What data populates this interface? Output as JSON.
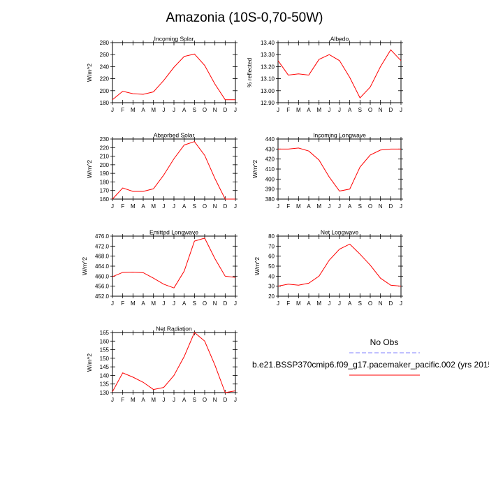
{
  "figure": {
    "title": "Amazonia (10S-0,70-50W)"
  },
  "legend": {
    "no_obs_label": "No Obs",
    "no_obs_color": "#8080ff",
    "case_label": "b.e21.BSSP370cmip6.f09_g17.pacemaker_pacific.002 (yrs 2015",
    "case_color": "#ff0000"
  },
  "chart_data": [
    {
      "type": "line",
      "title": "Incoming Solar",
      "ylabel": "W/m^2",
      "categories": [
        "J",
        "F",
        "M",
        "A",
        "M",
        "J",
        "J",
        "A",
        "S",
        "O",
        "N",
        "D",
        "J"
      ],
      "ylim": [
        180,
        280
      ],
      "yticks": [
        180,
        200,
        220,
        240,
        260,
        280
      ],
      "yticklabels": [
        "180",
        "200",
        "220",
        "240",
        "260",
        "280"
      ],
      "series": [
        {
          "values": [
            185,
            199,
            195,
            194,
            198,
            217,
            239,
            257,
            261,
            242,
            211,
            185,
            185
          ],
          "color": "#ff0000"
        }
      ]
    },
    {
      "type": "line",
      "title": "Albedo",
      "ylabel": "% reflected",
      "categories": [
        "J",
        "F",
        "M",
        "A",
        "M",
        "J",
        "J",
        "A",
        "S",
        "O",
        "N",
        "D",
        "J"
      ],
      "ylim": [
        12.9,
        13.4
      ],
      "yticks": [
        12.9,
        13.0,
        13.1,
        13.2,
        13.3,
        13.4
      ],
      "yticklabels": [
        "12.90",
        "13.00",
        "13.10",
        "13.20",
        "13.30",
        "13.40"
      ],
      "series": [
        {
          "values": [
            13.25,
            13.13,
            13.14,
            13.13,
            13.26,
            13.3,
            13.25,
            13.11,
            12.94,
            13.03,
            13.2,
            13.34,
            13.25
          ],
          "color": "#ff0000"
        }
      ]
    },
    {
      "type": "line",
      "title": "Absorbed Solar",
      "ylabel": "W/m^2",
      "categories": [
        "J",
        "F",
        "M",
        "A",
        "M",
        "J",
        "J",
        "A",
        "S",
        "O",
        "N",
        "D",
        "J"
      ],
      "ylim": [
        160,
        230
      ],
      "yticks": [
        160,
        170,
        180,
        190,
        200,
        210,
        220,
        230
      ],
      "yticklabels": [
        "160",
        "170",
        "180",
        "190",
        "200",
        "210",
        "220",
        "230"
      ],
      "series": [
        {
          "values": [
            160,
            173,
            169,
            169,
            172,
            188,
            207,
            223,
            227,
            211,
            184,
            160,
            160
          ],
          "color": "#ff0000"
        }
      ]
    },
    {
      "type": "line",
      "title": "Incoming Longwave",
      "ylabel": "W/m^2",
      "categories": [
        "J",
        "F",
        "M",
        "A",
        "M",
        "J",
        "J",
        "A",
        "S",
        "O",
        "N",
        "D",
        "J"
      ],
      "ylim": [
        380,
        440
      ],
      "yticks": [
        380,
        390,
        400,
        410,
        420,
        430,
        440
      ],
      "yticklabels": [
        "380",
        "390",
        "400",
        "410",
        "420",
        "430",
        "440"
      ],
      "series": [
        {
          "values": [
            430,
            430,
            431,
            428,
            419,
            402,
            388,
            390,
            412,
            424,
            429,
            430,
            430
          ],
          "color": "#ff0000"
        }
      ]
    },
    {
      "type": "line",
      "title": "Emitted Longwave",
      "ylabel": "W/m^2",
      "categories": [
        "J",
        "F",
        "M",
        "A",
        "M",
        "J",
        "J",
        "A",
        "S",
        "O",
        "N",
        "D",
        "J"
      ],
      "ylim": [
        452,
        476
      ],
      "yticks": [
        452,
        456,
        460,
        464,
        468,
        472,
        476
      ],
      "yticklabels": [
        "452.0",
        "456.0",
        "460.0",
        "464.0",
        "468.0",
        "472.0",
        "476.0"
      ],
      "series": [
        {
          "values": [
            459.8,
            461.5,
            461.6,
            461.4,
            459.2,
            456.8,
            455.3,
            462.0,
            474.0,
            475.2,
            467.0,
            460.0,
            459.5
          ],
          "color": "#ff0000"
        }
      ]
    },
    {
      "type": "line",
      "title": "Net Longwave",
      "ylabel": "W/m^2",
      "categories": [
        "J",
        "F",
        "M",
        "A",
        "M",
        "J",
        "J",
        "A",
        "S",
        "O",
        "N",
        "D",
        "J"
      ],
      "ylim": [
        20,
        80
      ],
      "yticks": [
        20,
        30,
        40,
        50,
        60,
        70,
        80
      ],
      "yticklabels": [
        "20",
        "30",
        "40",
        "50",
        "60",
        "70",
        "80"
      ],
      "series": [
        {
          "values": [
            30,
            32,
            31,
            33,
            40,
            56,
            67,
            72,
            62,
            51,
            38,
            31,
            30
          ],
          "color": "#ff0000"
        }
      ]
    },
    {
      "type": "line",
      "title": "Net Radiation",
      "ylabel": "W/m^2",
      "categories": [
        "J",
        "F",
        "M",
        "A",
        "M",
        "J",
        "J",
        "A",
        "S",
        "O",
        "N",
        "D",
        "J"
      ],
      "ylim": [
        130,
        165
      ],
      "yticks": [
        130,
        135,
        140,
        145,
        150,
        155,
        160,
        165
      ],
      "yticklabels": [
        "130",
        "135",
        "140",
        "145",
        "150",
        "155",
        "160",
        "165"
      ],
      "series": [
        {
          "values": [
            130.5,
            141.5,
            139,
            136,
            131.8,
            133,
            140,
            151,
            165,
            160,
            146,
            130,
            131
          ],
          "color": "#ff0000"
        }
      ]
    }
  ]
}
